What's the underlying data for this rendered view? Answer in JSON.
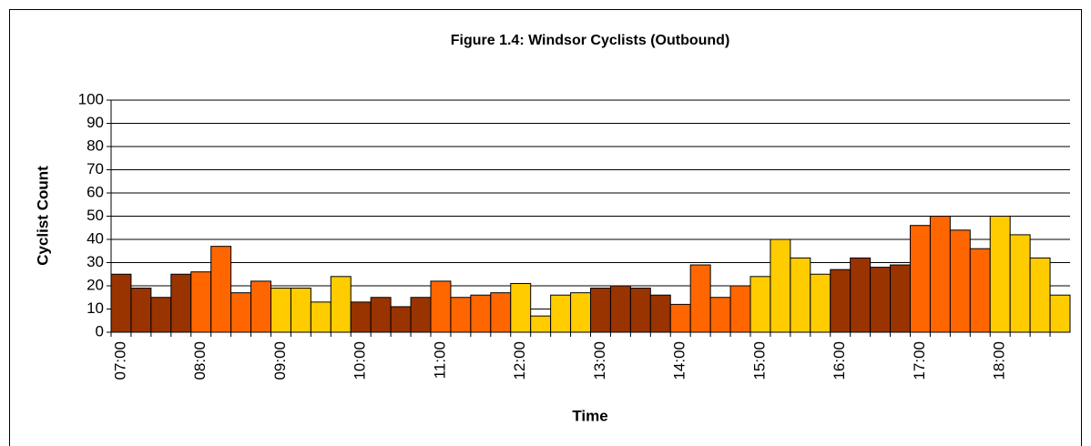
{
  "chart_data": {
    "type": "bar",
    "title": "Figure 1.4: Windsor Cyclists (Outbound)",
    "x_label": "Time",
    "y_label": "Cyclist Count",
    "categories": [
      "07:00",
      null,
      null,
      null,
      "08:00",
      null,
      null,
      null,
      "09:00",
      null,
      null,
      null,
      "10:00",
      null,
      null,
      null,
      "11:00",
      null,
      null,
      null,
      "12:00",
      null,
      null,
      null,
      "13:00",
      null,
      null,
      null,
      "14:00",
      null,
      null,
      null,
      "15:00",
      null,
      null,
      null,
      "16:00",
      null,
      null,
      null,
      "17:00",
      null,
      null,
      null,
      "18:00",
      null,
      null,
      null
    ],
    "values": [
      25,
      19,
      15,
      25,
      26,
      37,
      17,
      22,
      19,
      19,
      13,
      24,
      13,
      15,
      11,
      15,
      22,
      15,
      16,
      17,
      21,
      7,
      16,
      17,
      19,
      20,
      19,
      16,
      12,
      29,
      15,
      20,
      24,
      40,
      32,
      25,
      27,
      32,
      28,
      29,
      46,
      50,
      44,
      36,
      50,
      42,
      32,
      16
    ],
    "colors": [
      "#993300",
      "#993300",
      "#993300",
      "#993300",
      "#ff6600",
      "#ff6600",
      "#ff6600",
      "#ff6600",
      "#ffcc00",
      "#ffcc00",
      "#ffcc00",
      "#ffcc00",
      "#993300",
      "#993300",
      "#993300",
      "#993300",
      "#ff6600",
      "#ff6600",
      "#ff6600",
      "#ff6600",
      "#ffcc00",
      "#ffcc00",
      "#ffcc00",
      "#ffcc00",
      "#993300",
      "#993300",
      "#993300",
      "#993300",
      "#ff6600",
      "#ff6600",
      "#ff6600",
      "#ff6600",
      "#ffcc00",
      "#ffcc00",
      "#ffcc00",
      "#ffcc00",
      "#993300",
      "#993300",
      "#993300",
      "#993300",
      "#ff6600",
      "#ff6600",
      "#ff6600",
      "#ff6600",
      "#ffcc00",
      "#ffcc00",
      "#ffcc00",
      "#ffcc00"
    ],
    "ylim": [
      0,
      100
    ],
    "yticks": [
      0,
      10,
      20,
      30,
      40,
      50,
      60,
      70,
      80,
      90,
      100
    ],
    "grid": true
  }
}
